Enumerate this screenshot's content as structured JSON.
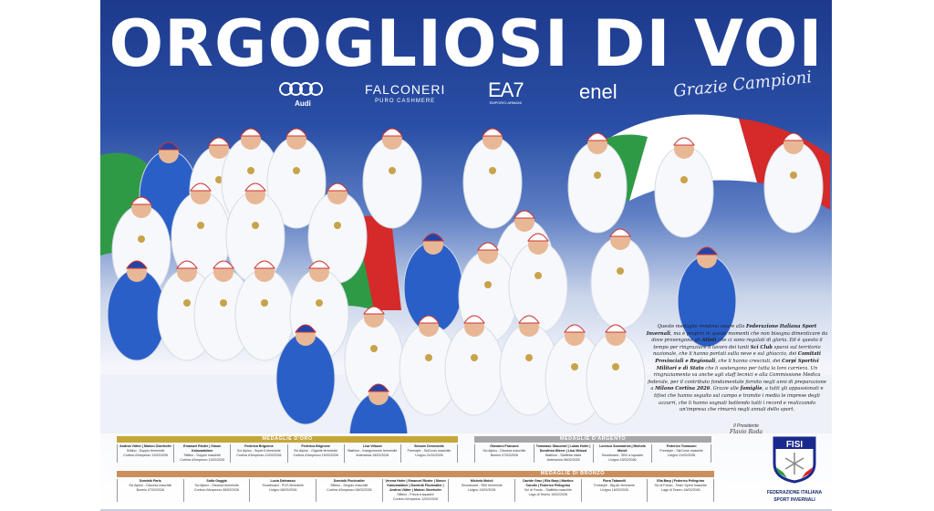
{
  "title": "ORGOGLIOSI DI VOI",
  "sponsors": {
    "audi": "Audi",
    "falconeri": "FALCONERI",
    "falconeri_sub": "PURO CASHMERE",
    "ea7": "EA7",
    "ea7_sub": "EMPORIO ARMANI",
    "enel": "enel"
  },
  "tagline": "Grazie Campioni",
  "colors": {
    "gold": "#c6a63a",
    "silver": "#a7a7a7",
    "bronze": "#c98f5c",
    "blue": "#1d3a8c"
  },
  "message": {
    "parts": [
      {
        "t": "Queste medaglie rendono onore alla ",
        "b": false
      },
      {
        "t": "Federazione Italiana Sport Invernali",
        "b": true
      },
      {
        "t": ", ma è proprio in questi momenti che non bisogna dimenticare da dove provengono gli ",
        "b": false
      },
      {
        "t": "Atleti",
        "b": true
      },
      {
        "t": " che ci sono regalati di gloria. Ed è questo il tempo per ringraziare il lavoro dei tanti ",
        "b": false
      },
      {
        "t": "Sci Club",
        "b": true
      },
      {
        "t": " sparsi sul territorio nazionale, che li hanno portati sulla neve e sul ghiaccio, dei ",
        "b": false
      },
      {
        "t": "Comitati Provinciali e Regionali",
        "b": true
      },
      {
        "t": ", che li hanno cresciuti, dei ",
        "b": false
      },
      {
        "t": "Corpi Sportivi Militari e di Stato",
        "b": true
      },
      {
        "t": " che li sostengono per tutta la loro carriera. Un ringraziamento va anche agli staff tecnici e alla Commissione Medica federale, per il contributo fondamentale fornito negli anni di preparazione a ",
        "b": false
      },
      {
        "t": "Milano Cortina 2026",
        "b": true
      },
      {
        "t": ". Grazie alle ",
        "b": false
      },
      {
        "t": "famiglie",
        "b": true
      },
      {
        "t": ", a tutti gli appassionati e tifosi che hanno seguito sul campo e tramite i media le imprese degli azzurri, che li hanno sognati battendo tutti i record e realizzando un'impresa che rimarrà negli annali dello sport.",
        "b": false
      }
    ],
    "signature_role": "Il Presidente",
    "signature_name": "Flavio Roda"
  },
  "medals": {
    "gold": {
      "label": "MEDAGLIE D'ORO",
      "entries": [
        {
          "athletes": "Andrea Vötter | Marion Oberhofer",
          "event": "Slittino - Doppio femminile",
          "place": "Cortina d'Ampezzo 11/02/2026"
        },
        {
          "athletes": "Emanuel Rieder | Simon Kainzwaldner",
          "event": "Slittino - Doppio maschile",
          "place": "Cortina d'Ampezzo 11/02/2026"
        },
        {
          "athletes": "Federica Brignone",
          "event": "Sci Alpino - SuperG femminile",
          "place": "Cortina d'Ampezzo 12/02/2026"
        },
        {
          "athletes": "Federica Brignone",
          "event": "Sci Alpino - Gigante femminile",
          "place": "Cortina d'Ampezzo 15/02/2026"
        },
        {
          "athletes": "Lisa Vittozzi",
          "event": "Biathlon - Inseguimento femminile",
          "place": "Anterselva 15/02/2026"
        },
        {
          "athletes": "Simone Deromedis",
          "event": "Freestyle - SkiCross maschile",
          "place": "Livigno 21/02/2026"
        }
      ]
    },
    "silver": {
      "label": "MEDAGLIE D'ARGENTO",
      "entries": [
        {
          "athletes": "Giovanni Franzoni",
          "event": "Sci Alpino - Discesa maschile",
          "place": "Bormio 07/02/2026"
        },
        {
          "athletes": "Tommaso Giacomel | Lukas Hofer | Dorothea Wierer | Lisa Vittozzi",
          "event": "Biathlon - Staffetta mista",
          "place": "Anterselva 08/02/2026"
        },
        {
          "athletes": "Lorenzo Sommariva | Michela Moioli",
          "event": "Snowboard - SBX a squadre",
          "place": "Livigno 15/02/2026"
        },
        {
          "athletes": "Federico Tomasoni",
          "event": "Freestyle - SkiCross maschile",
          "place": "Livigno 21/02/2026"
        }
      ]
    },
    "bronze": {
      "label": "MEDAGLIE DI BRONZO",
      "entries": [
        {
          "athletes": "Dominik Paris",
          "event": "Sci Alpino - Discesa maschile",
          "place": "Bormio 07/02/2026"
        },
        {
          "athletes": "Sofia Goggia",
          "event": "Sci Alpino - Discesa femminile",
          "place": "Cortina d'Ampezzo 08/02/2026"
        },
        {
          "athletes": "Lucia Dalmasso",
          "event": "Snowboard - PGS femminile",
          "place": "Livigno 08/02/2026"
        },
        {
          "athletes": "Dominik Fischnaller",
          "event": "Slittino - Singolo maschile",
          "place": "Cortina d'Ampezzo 08/02/2026"
        },
        {
          "athletes": "Verena Hofer | Emanuel Rieder | Simon Kainzwaldner | Dominik Fischnaller | Andrea Vötter | Marion Oberhofer",
          "event": "Slittino - Prova a squadre",
          "place": "Cortina d'Ampezzo 12/02/2026"
        },
        {
          "athletes": "Michela Moioli",
          "event": "Snowboard - SBX femminile",
          "place": "Livigno 13/02/2026"
        },
        {
          "athletes": "Davide Graz | Elia Barp | Martino Carollo | Federico Pellegrino",
          "event": "Sci di Fondo - Staffetta maschile",
          "place": "Lago di Tesero 15/02/2026"
        },
        {
          "athletes": "Flora Tabanelli",
          "event": "Freestyle - Big Air femminile",
          "place": "Livigno 16/02/2026"
        },
        {
          "athletes": "Elia Barp | Federico Pellegrino",
          "event": "Sci di Fondo - Team Sprint maschile",
          "place": "Lago di Tesero 18/02/2026"
        }
      ]
    }
  },
  "fisi": {
    "logo_text": "FISI",
    "name_line1": "FEDERAZIONE ITALIANA",
    "name_line2": "SPORT INVERNALI"
  }
}
